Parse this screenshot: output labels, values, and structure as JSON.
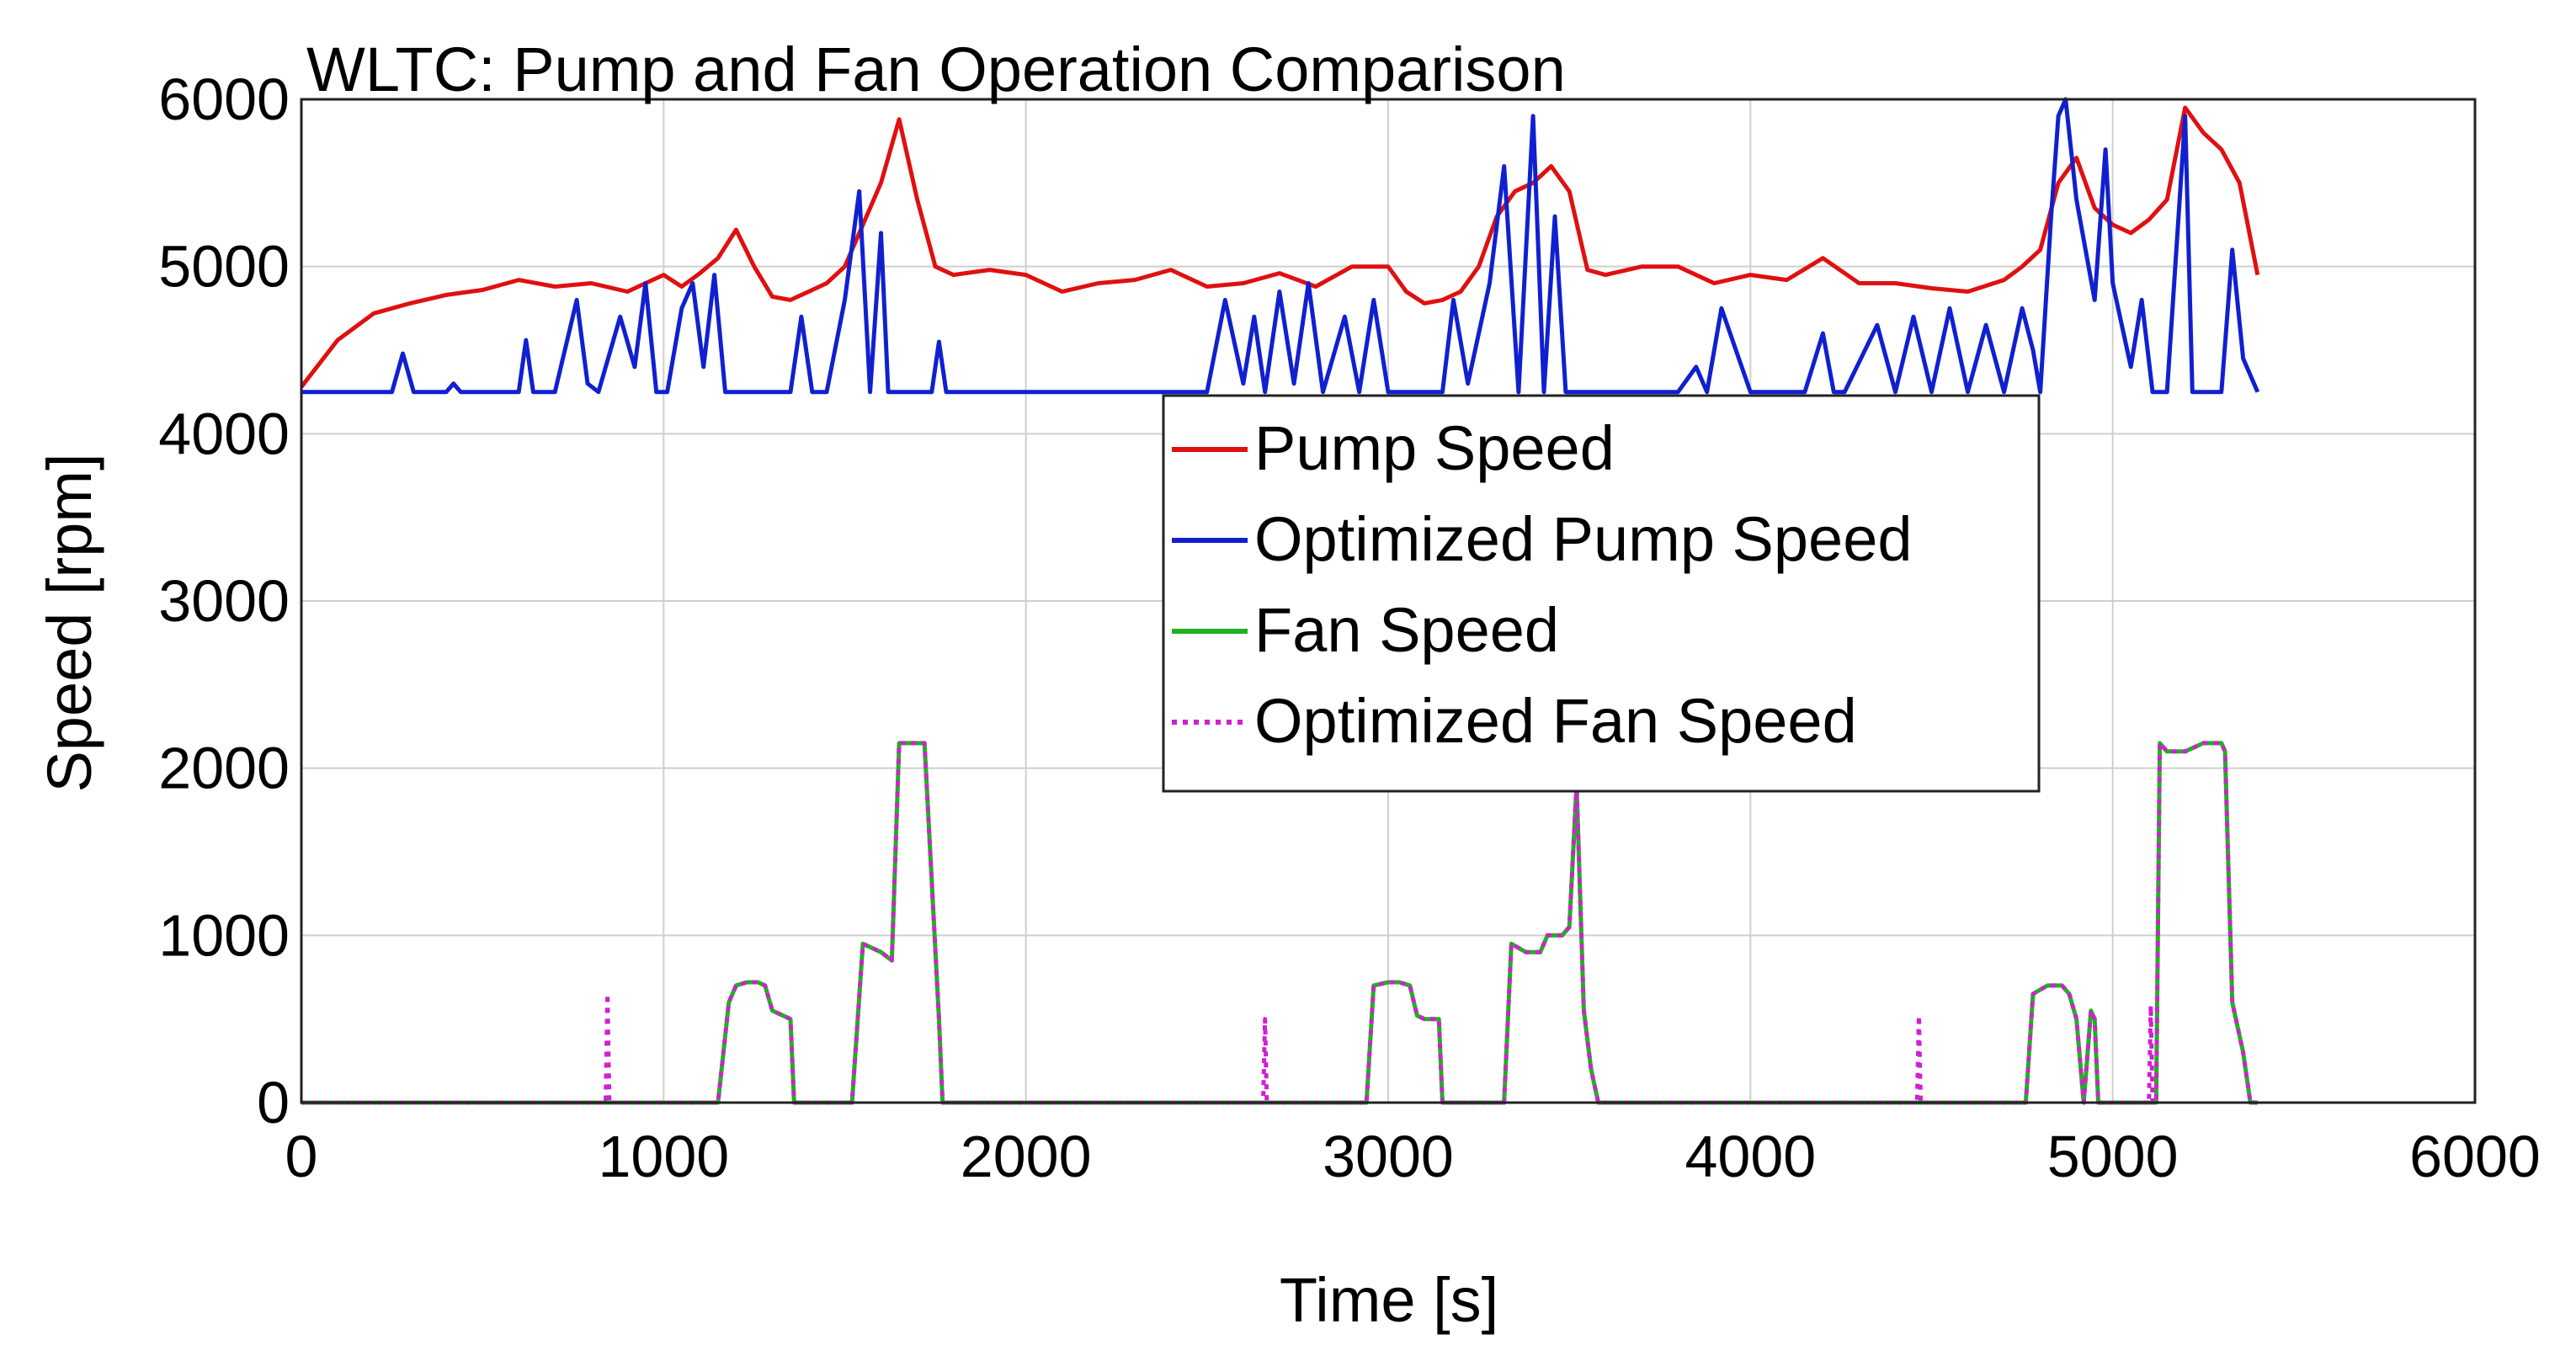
{
  "chart_data": {
    "type": "line",
    "title": "WLTC: Pump and Fan Operation Comparison",
    "xlabel": "Time [s]",
    "ylabel": "Speed [rpm]",
    "xlim": [
      0,
      6000
    ],
    "ylim": [
      0,
      6000
    ],
    "xticks": [
      0,
      1000,
      2000,
      3000,
      4000,
      5000,
      6000
    ],
    "yticks": [
      0,
      1000,
      2000,
      3000,
      4000,
      5000,
      6000
    ],
    "xtick_labels": [
      "0",
      "1000",
      "2000",
      "3000",
      "4000",
      "5000",
      "6000"
    ],
    "ytick_labels": [
      "0",
      "1000",
      "2000",
      "3000",
      "4000",
      "5000",
      "6000"
    ],
    "grid": true,
    "legend_position": "center",
    "series": [
      {
        "name": "Pump Speed",
        "color": "#e01010",
        "style": "solid",
        "x": [
          0,
          100,
          200,
          300,
          400,
          500,
          600,
          700,
          800,
          900,
          950,
          1000,
          1050,
          1100,
          1150,
          1200,
          1250,
          1300,
          1350,
          1400,
          1450,
          1500,
          1550,
          1600,
          1650,
          1700,
          1750,
          1800,
          1900,
          2000,
          2100,
          2200,
          2300,
          2400,
          2500,
          2600,
          2700,
          2800,
          2900,
          3000,
          3050,
          3100,
          3150,
          3200,
          3250,
          3300,
          3350,
          3400,
          3450,
          3500,
          3550,
          3600,
          3700,
          3800,
          3900,
          4000,
          4100,
          4200,
          4300,
          4400,
          4500,
          4600,
          4700,
          4750,
          4800,
          4850,
          4900,
          4950,
          5000,
          5050,
          5100,
          5150,
          5200,
          5250,
          5300,
          5350,
          5400
        ],
        "values": [
          4280,
          4560,
          4720,
          4780,
          4830,
          4860,
          4920,
          4880,
          4900,
          4850,
          4900,
          4950,
          4880,
          4960,
          5050,
          5220,
          5000,
          4820,
          4800,
          4850,
          4900,
          5000,
          5250,
          5500,
          5880,
          5400,
          5000,
          4950,
          4980,
          4950,
          4850,
          4900,
          4920,
          4980,
          4880,
          4900,
          4960,
          4880,
          5000,
          5000,
          4850,
          4780,
          4800,
          4850,
          5000,
          5300,
          5450,
          5500,
          5600,
          5450,
          4980,
          4950,
          5000,
          5000,
          4900,
          4950,
          4920,
          5050,
          4900,
          4900,
          4870,
          4850,
          4920,
          5000,
          5100,
          5500,
          5650,
          5350,
          5250,
          5200,
          5280,
          5400,
          5950,
          5800,
          5700,
          5500,
          4950
        ]
      },
      {
        "name": "Optimized Pump Speed",
        "color": "#1020d0",
        "style": "solid",
        "x": [
          0,
          250,
          280,
          310,
          400,
          420,
          440,
          600,
          620,
          640,
          700,
          760,
          790,
          820,
          880,
          920,
          950,
          980,
          1010,
          1050,
          1080,
          1110,
          1140,
          1170,
          1200,
          1300,
          1350,
          1380,
          1410,
          1450,
          1500,
          1540,
          1570,
          1600,
          1620,
          1660,
          1700,
          1740,
          1760,
          1780,
          2000,
          2100,
          2400,
          2500,
          2550,
          2600,
          2630,
          2660,
          2700,
          2740,
          2780,
          2820,
          2880,
          2920,
          2960,
          3000,
          3100,
          3150,
          3180,
          3220,
          3280,
          3320,
          3360,
          3400,
          3430,
          3460,
          3490,
          3520,
          3550,
          3600,
          3800,
          3850,
          3880,
          3920,
          4000,
          4150,
          4200,
          4230,
          4260,
          4350,
          4400,
          4450,
          4500,
          4550,
          4600,
          4650,
          4700,
          4750,
          4780,
          4800,
          4830,
          4850,
          4870,
          4900,
          4950,
          4980,
          5000,
          5050,
          5080,
          5110,
          5150,
          5200,
          5220,
          5250,
          5280,
          5300,
          5330,
          5360,
          5400
        ],
        "values": [
          4250,
          4250,
          4480,
          4250,
          4250,
          4300,
          4250,
          4250,
          4560,
          4250,
          4250,
          4800,
          4300,
          4250,
          4700,
          4400,
          4900,
          4250,
          4250,
          4750,
          4900,
          4400,
          4950,
          4250,
          4250,
          4250,
          4250,
          4700,
          4250,
          4250,
          4800,
          5450,
          4250,
          5200,
          4250,
          4250,
          4250,
          4250,
          4550,
          4250,
          4250,
          4250,
          4250,
          4250,
          4800,
          4300,
          4700,
          4250,
          4850,
          4300,
          4900,
          4250,
          4700,
          4250,
          4800,
          4250,
          4250,
          4250,
          4800,
          4300,
          4900,
          5600,
          4250,
          5900,
          4250,
          5300,
          4250,
          4250,
          4250,
          4250,
          4250,
          4400,
          4250,
          4750,
          4250,
          4250,
          4600,
          4250,
          4250,
          4650,
          4250,
          4700,
          4250,
          4750,
          4250,
          4650,
          4250,
          4750,
          4500,
          4250,
          5300,
          5900,
          6000,
          5400,
          4800,
          5700,
          4900,
          4400,
          4800,
          4250,
          4250,
          5900,
          4250,
          4250,
          4250,
          4250,
          5100,
          4450,
          4250
        ]
      },
      {
        "name": "Fan Speed",
        "color": "#20b020",
        "style": "solid",
        "x": [
          0,
          1150,
          1180,
          1200,
          1230,
          1260,
          1280,
          1300,
          1330,
          1350,
          1360,
          1520,
          1550,
          1600,
          1630,
          1650,
          1680,
          1700,
          1720,
          1760,
          1770,
          2940,
          2960,
          3000,
          3030,
          3060,
          3080,
          3100,
          3140,
          3150,
          3160,
          3320,
          3340,
          3380,
          3420,
          3440,
          3480,
          3500,
          3520,
          3540,
          3560,
          3580,
          4760,
          4780,
          4820,
          4860,
          4880,
          4900,
          4920,
          4940,
          4950,
          4960,
          5120,
          5130,
          5150,
          5200,
          5250,
          5300,
          5310,
          5330,
          5360,
          5380,
          5400
        ],
        "values": [
          0,
          0,
          600,
          700,
          720,
          720,
          700,
          550,
          520,
          500,
          0,
          0,
          950,
          900,
          850,
          2150,
          2150,
          2150,
          2150,
          500,
          0,
          0,
          700,
          720,
          720,
          700,
          520,
          500,
          500,
          0,
          0,
          0,
          950,
          900,
          900,
          1000,
          1000,
          1050,
          1900,
          550,
          200,
          0,
          0,
          650,
          700,
          700,
          650,
          500,
          0,
          550,
          500,
          0,
          0,
          2150,
          2100,
          2100,
          2150,
          2150,
          2100,
          600,
          300,
          0,
          0
        ]
      },
      {
        "name": "Optimized Fan Speed",
        "color": "#d020d0",
        "style": "dotted",
        "x": [
          0,
          840,
          845,
          850,
          855,
          1150,
          1180,
          1200,
          1230,
          1260,
          1280,
          1300,
          1330,
          1350,
          1360,
          1520,
          1550,
          1600,
          1630,
          1650,
          1680,
          1700,
          1720,
          1760,
          1770,
          2655,
          2660,
          2665,
          2670,
          2940,
          2960,
          3000,
          3030,
          3060,
          3080,
          3100,
          3140,
          3150,
          3160,
          3320,
          3340,
          3380,
          3420,
          3440,
          3480,
          3500,
          3520,
          3540,
          3560,
          3580,
          4460,
          4465,
          4470,
          4475,
          4760,
          4780,
          4820,
          4860,
          4880,
          4900,
          4920,
          4940,
          4950,
          4960,
          5100,
          5105,
          5110,
          5120,
          5130,
          5150,
          5200,
          5250,
          5300,
          5310,
          5330,
          5360,
          5380,
          5400
        ],
        "values": [
          0,
          0,
          650,
          0,
          0,
          0,
          600,
          700,
          720,
          720,
          700,
          550,
          520,
          500,
          0,
          0,
          950,
          900,
          850,
          2150,
          2150,
          2150,
          2150,
          500,
          0,
          0,
          500,
          0,
          0,
          0,
          700,
          720,
          720,
          700,
          520,
          500,
          500,
          0,
          0,
          0,
          950,
          900,
          900,
          1000,
          1000,
          1050,
          1900,
          550,
          200,
          0,
          0,
          520,
          0,
          0,
          0,
          650,
          700,
          700,
          650,
          500,
          0,
          550,
          500,
          0,
          0,
          580,
          0,
          0,
          2150,
          2100,
          2100,
          2150,
          2150,
          2100,
          600,
          300,
          0,
          0
        ]
      }
    ]
  }
}
